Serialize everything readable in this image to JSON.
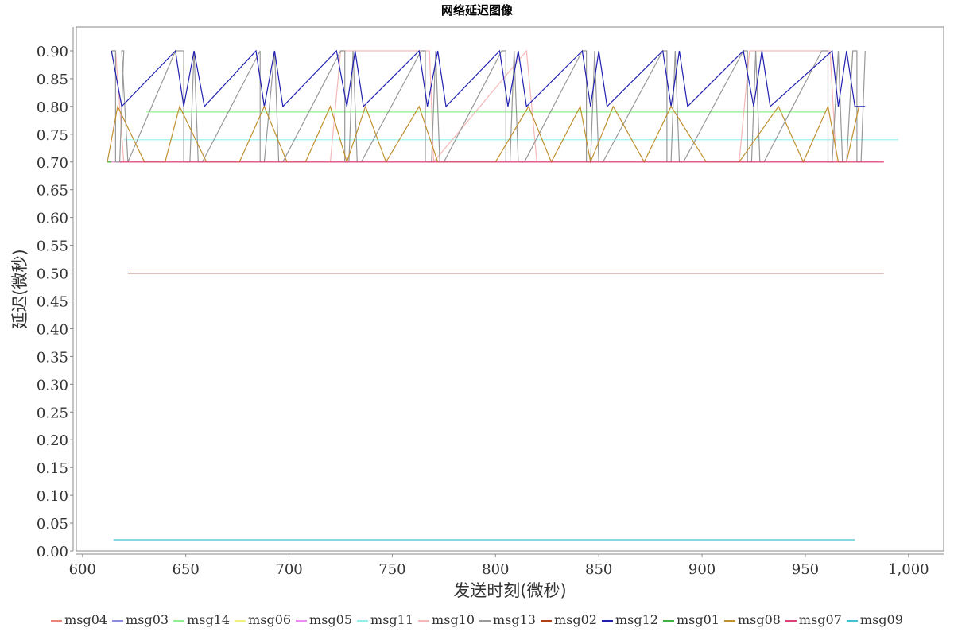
{
  "chart_data": {
    "type": "line",
    "title": "网络延迟图像",
    "xlabel": "发送时刻(微秒)",
    "ylabel": "延迟(微秒)",
    "xlim": [
      597,
      1017
    ],
    "ylim": [
      0,
      0.9
    ],
    "xticks": [
      {
        "v": 600,
        "label": "600"
      },
      {
        "v": 650,
        "label": "650"
      },
      {
        "v": 700,
        "label": "700"
      },
      {
        "v": 750,
        "label": "750"
      },
      {
        "v": 800,
        "label": "800"
      },
      {
        "v": 850,
        "label": "850"
      },
      {
        "v": 900,
        "label": "900"
      },
      {
        "v": 950,
        "label": "950"
      },
      {
        "v": 1000,
        "label": "1,000"
      }
    ],
    "yticks": [
      "0.00",
      "0.05",
      "0.10",
      "0.15",
      "0.20",
      "0.25",
      "0.30",
      "0.35",
      "0.40",
      "0.45",
      "0.50",
      "0.55",
      "0.60",
      "0.65",
      "0.70",
      "0.75",
      "0.80",
      "0.85",
      "0.90"
    ],
    "grid": false,
    "legend_position": "bottom",
    "series": [
      {
        "name": "msg04",
        "color": "#e8847a",
        "x": [
          612,
          614,
          988
        ],
        "y": [
          0.7,
          0.7,
          0.7
        ]
      },
      {
        "name": "msg03",
        "color": "#8a8ae0",
        "x": [
          622,
          988
        ],
        "y": [
          0.5,
          0.5
        ]
      },
      {
        "name": "msg14",
        "color": "#8ff08f",
        "x": [
          631,
          960
        ],
        "y": [
          0.79,
          0.79
        ]
      },
      {
        "name": "msg06",
        "color": "#f0f080",
        "x": [
          612,
          988
        ],
        "y": [
          0.7,
          0.7
        ]
      },
      {
        "name": "msg05",
        "color": "#f08af0",
        "x": [
          614,
          988
        ],
        "y": [
          0.7,
          0.7
        ]
      },
      {
        "name": "msg11",
        "color": "#8ff0f0",
        "x": [
          620,
          995
        ],
        "y": [
          0.74,
          0.74
        ]
      },
      {
        "name": "msg10",
        "color": "#f5b8b8",
        "x": [
          614,
          616,
          620,
          720,
          725,
          768,
          770,
          815,
          820,
          918,
          923,
          962,
          965,
          970,
          978
        ],
        "y": [
          0.9,
          0.9,
          0.7,
          0.7,
          0.9,
          0.9,
          0.7,
          0.9,
          0.7,
          0.7,
          0.9,
          0.9,
          0.7,
          0.7,
          0.7
        ]
      },
      {
        "name": "msg13",
        "color": "#999999",
        "x": [
          614,
          616,
          616,
          618,
          620,
          619,
          622,
          645,
          649,
          649,
          652,
          654,
          654,
          656,
          658,
          686,
          686,
          688,
          693,
          693,
          695,
          697,
          725,
          727,
          727,
          729,
          731,
          731,
          733,
          735,
          764,
          766,
          766,
          769,
          771,
          771,
          773,
          775,
          803,
          805,
          805,
          807,
          809,
          809,
          811,
          814,
          842,
          844,
          844,
          846,
          848,
          848,
          850,
          852,
          881,
          883,
          883,
          885,
          887,
          887,
          889,
          891,
          920,
          922,
          922,
          924,
          926,
          926,
          928,
          930,
          958,
          961,
          961,
          963,
          966,
          966,
          968,
          970,
          973,
          975,
          975,
          977,
          979
        ],
        "y": [
          0.9,
          0.9,
          0.7,
          0.7,
          0.9,
          0.9,
          0.7,
          0.9,
          0.9,
          0.7,
          0.7,
          0.9,
          0.9,
          0.7,
          0.7,
          0.9,
          0.7,
          0.7,
          0.9,
          0.9,
          0.7,
          0.7,
          0.9,
          0.9,
          0.7,
          0.7,
          0.9,
          0.9,
          0.7,
          0.7,
          0.9,
          0.9,
          0.7,
          0.7,
          0.9,
          0.9,
          0.7,
          0.7,
          0.9,
          0.9,
          0.7,
          0.7,
          0.9,
          0.9,
          0.7,
          0.7,
          0.9,
          0.9,
          0.7,
          0.7,
          0.9,
          0.9,
          0.7,
          0.7,
          0.9,
          0.9,
          0.7,
          0.7,
          0.9,
          0.9,
          0.7,
          0.7,
          0.9,
          0.9,
          0.7,
          0.7,
          0.9,
          0.9,
          0.7,
          0.7,
          0.9,
          0.9,
          0.7,
          0.7,
          0.9,
          0.9,
          0.7,
          0.7,
          0.9,
          0.9,
          0.7,
          0.7,
          0.9
        ]
      },
      {
        "name": "msg02",
        "color": "#b04010",
        "x": [
          622,
          988
        ],
        "y": [
          0.5,
          0.5
        ]
      },
      {
        "name": "msg12",
        "color": "#2020b0",
        "x": [
          614,
          619,
          645,
          649,
          654,
          659,
          684,
          688,
          693,
          697,
          723,
          728,
          732,
          736,
          763,
          767,
          772,
          776,
          802,
          806,
          811,
          815,
          842,
          846,
          850,
          854,
          881,
          885,
          889,
          893,
          920,
          925,
          929,
          933,
          963,
          966,
          970,
          974,
          979
        ],
        "y": [
          0.9,
          0.8,
          0.9,
          0.8,
          0.9,
          0.8,
          0.9,
          0.8,
          0.9,
          0.8,
          0.9,
          0.8,
          0.9,
          0.8,
          0.9,
          0.8,
          0.9,
          0.8,
          0.9,
          0.8,
          0.9,
          0.8,
          0.9,
          0.8,
          0.9,
          0.8,
          0.9,
          0.8,
          0.9,
          0.8,
          0.9,
          0.8,
          0.9,
          0.8,
          0.9,
          0.8,
          0.9,
          0.8,
          0.8
        ]
      },
      {
        "name": "msg01",
        "color": "#40b040",
        "x": [
          612,
          614
        ],
        "y": [
          0.7,
          0.7
        ]
      },
      {
        "name": "msg08",
        "color": "#c09030",
        "x": [
          612,
          617,
          630,
          640,
          647,
          660,
          670,
          676,
          688,
          699,
          708,
          720,
          728,
          737,
          747,
          763,
          772,
          788,
          800,
          816,
          827,
          841,
          846,
          857,
          872,
          885,
          902,
          918,
          937,
          949,
          961,
          966,
          970,
          976
        ],
        "y": [
          0.7,
          0.8,
          0.7,
          0.7,
          0.8,
          0.7,
          0.7,
          0.7,
          0.8,
          0.7,
          0.7,
          0.8,
          0.7,
          0.8,
          0.7,
          0.8,
          0.7,
          0.7,
          0.7,
          0.8,
          0.7,
          0.8,
          0.7,
          0.8,
          0.7,
          0.8,
          0.7,
          0.7,
          0.8,
          0.7,
          0.8,
          0.7,
          0.7,
          0.8
        ]
      },
      {
        "name": "msg07",
        "color": "#e0407a",
        "x": [
          618,
          988
        ],
        "y": [
          0.7,
          0.7
        ]
      },
      {
        "name": "msg09",
        "color": "#40c0d0",
        "x": [
          615,
          974
        ],
        "y": [
          0.02,
          0.02
        ]
      }
    ]
  }
}
